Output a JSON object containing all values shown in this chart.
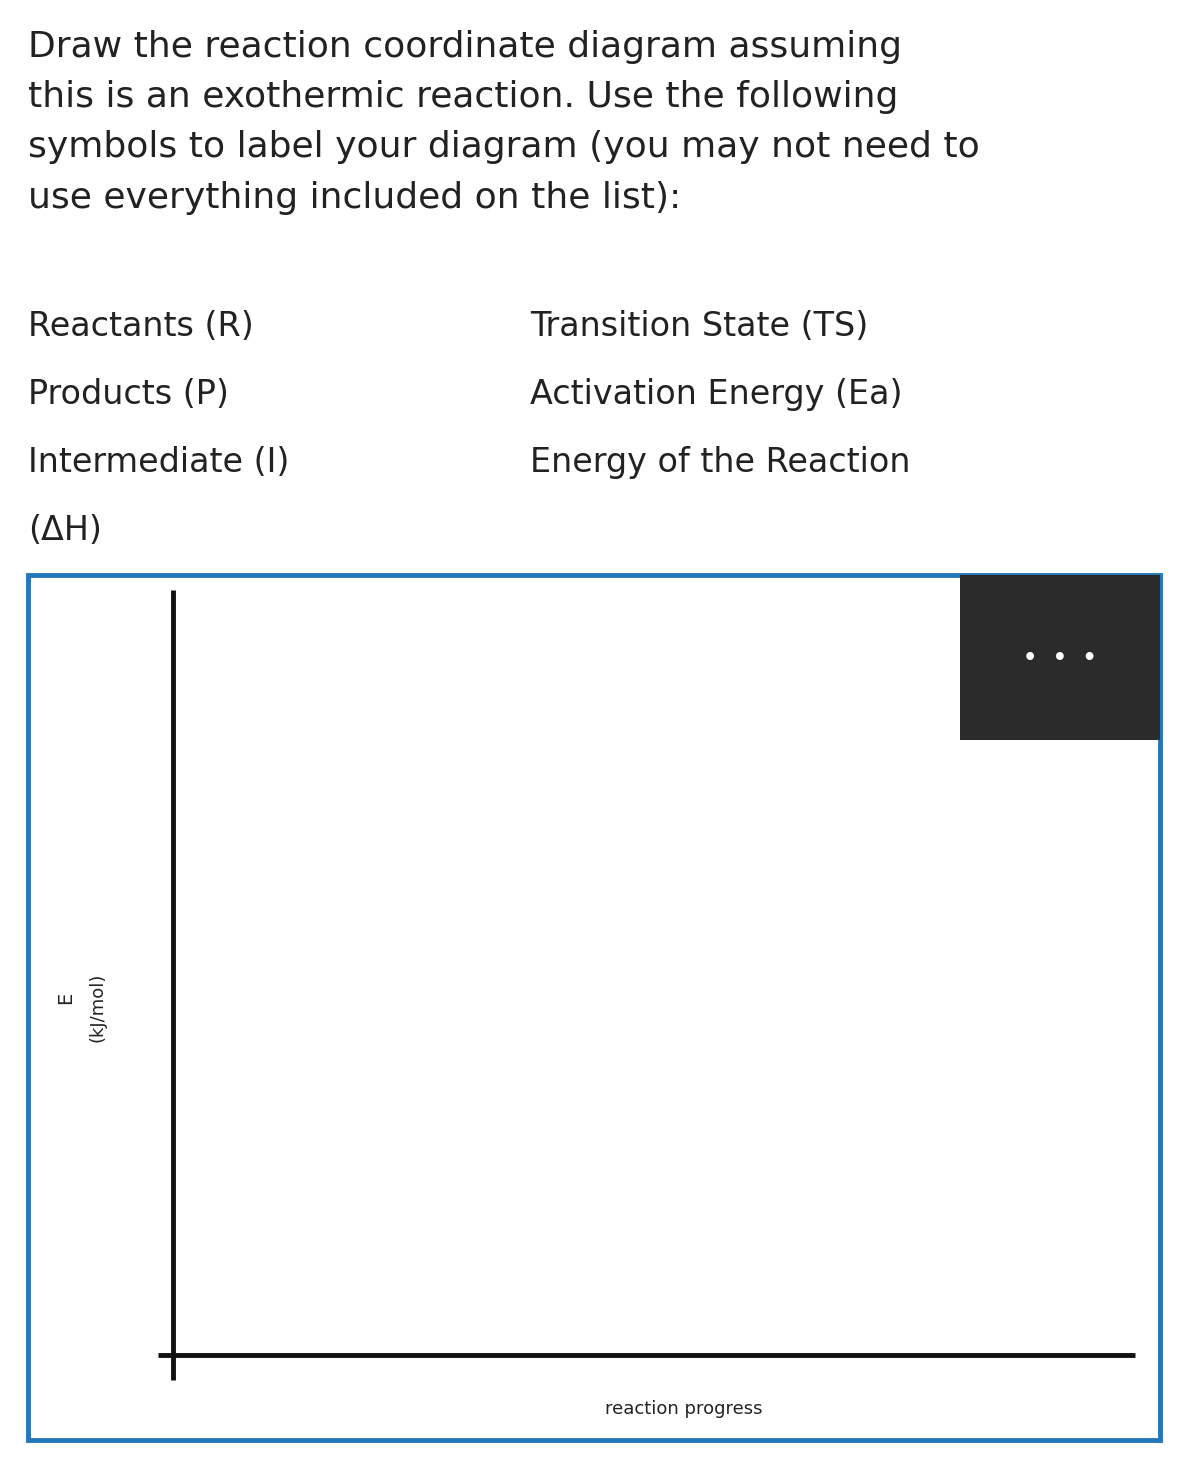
{
  "title_text": "Draw the reaction coordinate diagram assuming\nthis is an exothermic reaction. Use the following\nsymbols to label your diagram (you may not need to\nuse everything included on the list):",
  "list_left": [
    "Reactants (R)",
    "Products (P)",
    "Intermediate (I)",
    "(ΔH)"
  ],
  "list_right": [
    "Transition State (TS)",
    "Activation Energy (Ea)",
    "Energy of the Reaction"
  ],
  "ylabel_E": "E",
  "ylabel_kj": "(kJ/mol)",
  "xlabel": "reaction progress",
  "bg_color": "#ffffff",
  "plot_border_color": "#2577bb",
  "axes_color": "#111111",
  "text_color": "#222222",
  "dark_box_color": "#2b2b2b",
  "title_fontsize": 26,
  "list_fontsize": 24,
  "axis_label_fontsize": 13
}
